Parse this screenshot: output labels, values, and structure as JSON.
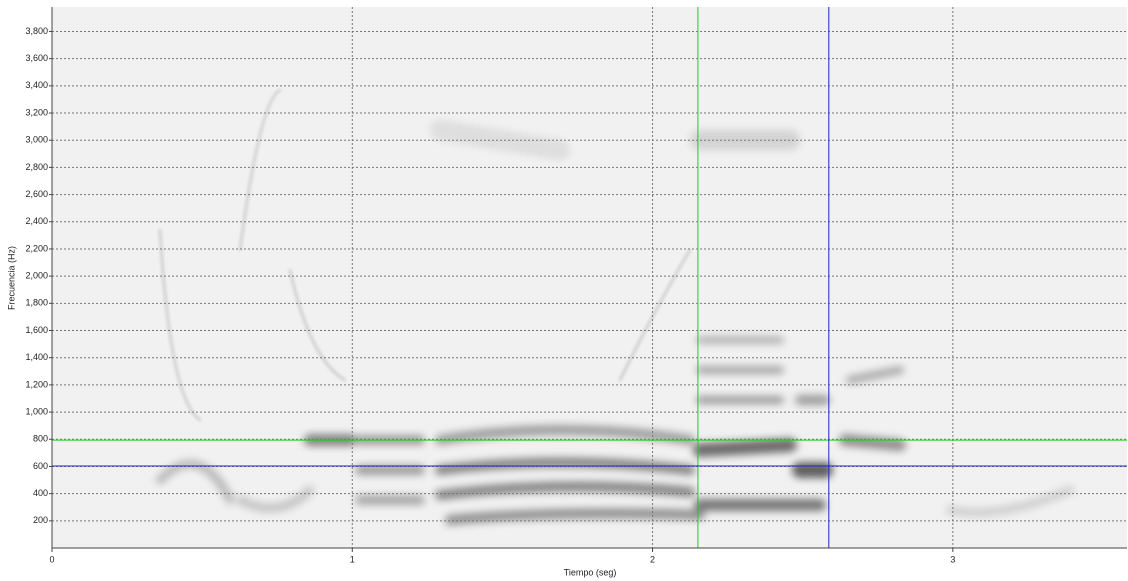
{
  "chart_data": {
    "type": "spectrogram",
    "xlabel": "Tiempo (seg)",
    "ylabel": "Frecuencia (Hz)",
    "xlim": [
      0,
      3.58
    ],
    "xticks": [
      0,
      1,
      2,
      3
    ],
    "ylim": [
      0,
      3980
    ],
    "yticks": [
      200,
      400,
      600,
      800,
      {
        "value": 1000,
        "label": "1,000"
      },
      {
        "value": 1200,
        "label": "1,200"
      },
      {
        "value": 1400,
        "label": "1,400"
      },
      {
        "value": 1600,
        "label": "1,600"
      },
      {
        "value": 1800,
        "label": "1,800"
      },
      {
        "value": 2000,
        "label": "2,000"
      },
      {
        "value": 2200,
        "label": "2,200"
      },
      {
        "value": 2400,
        "label": "2,400"
      },
      {
        "value": 2600,
        "label": "2,600"
      },
      {
        "value": 2800,
        "label": "2,800"
      },
      {
        "value": 3000,
        "label": "3,000"
      },
      {
        "value": 3200,
        "label": "3,200"
      },
      {
        "value": 3400,
        "label": "3,400"
      },
      {
        "value": 3600,
        "label": "3,600"
      },
      {
        "value": 3800,
        "label": "3,800"
      }
    ],
    "grid": true,
    "cursors": [
      {
        "color": "#22cc22",
        "time": 2.151,
        "freq": 794
      },
      {
        "color": "#2222cc",
        "time": 2.587,
        "freq": 603
      }
    ]
  }
}
